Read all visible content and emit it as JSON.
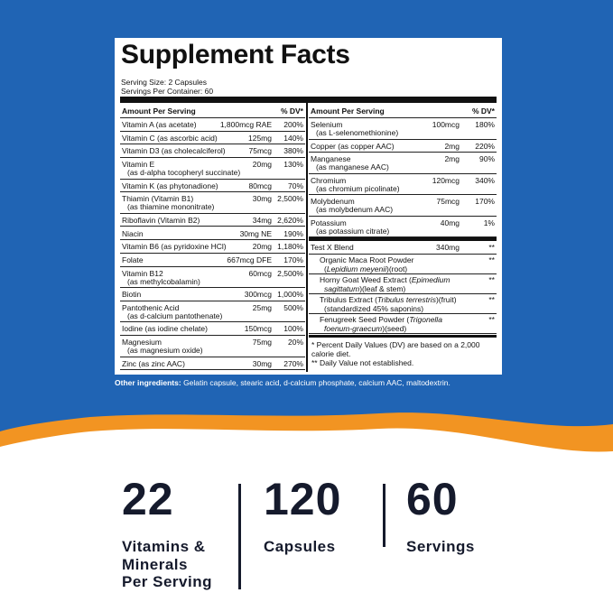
{
  "header": {
    "title": "Supplement Facts",
    "serving_size": "Serving Size: 2 Capsules",
    "servings_per_container": "Servings Per Container: 60"
  },
  "left_table": {
    "amount_header": "Amount Per Serving",
    "dv_header": "% DV*",
    "rows": [
      {
        "name": "Vitamin A (as acetate)",
        "amount": "1,800mcg RAE",
        "dv": "200%"
      },
      {
        "name": "Vitamin C (as ascorbic acid)",
        "amount": "125mg",
        "dv": "140%"
      },
      {
        "name": "Vitamin D3 (as cholecalciferol)",
        "amount": "75mcg",
        "dv": "380%"
      },
      {
        "name": "Vitamin E",
        "sub": "(as d-alpha tocopheryl succinate)",
        "amount": "20mg",
        "dv": "130%"
      },
      {
        "name": "Vitamin K (as phytonadione)",
        "amount": "80mcg",
        "dv": "70%"
      },
      {
        "name": "Thiamin (Vitamin B1)",
        "sub": "(as thiamine mononitrate)",
        "amount": "30mg",
        "dv": "2,500%"
      },
      {
        "name": "Riboflavin (Vitamin B2)",
        "amount": "34mg",
        "dv": "2,620%"
      },
      {
        "name": "Niacin",
        "amount": "30mg NE",
        "dv": "190%"
      },
      {
        "name": "Vitamin B6 (as pyridoxine HCl)",
        "amount": "20mg",
        "dv": "1,180%"
      },
      {
        "name": "Folate",
        "amount": "667mcg DFE",
        "dv": "170%"
      },
      {
        "name": "Vitamin B12",
        "sub": "(as methylcobalamin)",
        "amount": "60mcg",
        "dv": "2,500%"
      },
      {
        "name": "Biotin",
        "amount": "300mcg",
        "dv": "1,000%"
      },
      {
        "name": "Pantothenic Acid",
        "sub": "(as d-calcium pantothenate)",
        "amount": "25mg",
        "dv": "500%"
      },
      {
        "name": "Iodine (as iodine chelate)",
        "amount": "150mcg",
        "dv": "100%"
      },
      {
        "name": "Magnesium",
        "sub": "(as magnesium oxide)",
        "amount": "75mg",
        "dv": "20%"
      },
      {
        "name": "Zinc (as zinc AAC)",
        "amount": "30mg",
        "dv": "270%"
      }
    ]
  },
  "right_table": {
    "amount_header": "Amount Per Serving",
    "dv_header": "% DV*",
    "rows": [
      {
        "name": "Selenium",
        "sub": "(as L-selenomethionine)",
        "amount": "100mcg",
        "dv": "180%"
      },
      {
        "name": "Copper (as copper AAC)",
        "amount": "2mg",
        "dv": "220%"
      },
      {
        "name": "Manganese",
        "sub": "(as manganese AAC)",
        "amount": "2mg",
        "dv": "90%"
      },
      {
        "name": "Chromium",
        "sub": "(as chromium picolinate)",
        "amount": "120mcg",
        "dv": "340%"
      },
      {
        "name": "Molybdenum",
        "sub": "(as molybdenum AAC)",
        "amount": "75mcg",
        "dv": "170%"
      },
      {
        "name": "Potassium",
        "sub": "(as potassium citrate)",
        "amount": "40mg",
        "dv": "1%"
      }
    ],
    "blend": {
      "name": "Test X Blend",
      "amount": "340mg",
      "dv": "**",
      "items": [
        {
          "lines": [
            [
              {
                "text": "Organic Maca Root Powder"
              }
            ],
            [
              {
                "text": "("
              },
              {
                "text": "Lepidium meyenii",
                "italic": true
              },
              {
                "text": ")(root)"
              }
            ]
          ],
          "dv": "**"
        },
        {
          "lines": [
            [
              {
                "text": "Horny Goat Weed Extract ("
              },
              {
                "text": "Epimedium",
                "italic": true
              }
            ],
            [
              {
                "text": "sagittatum",
                "italic": true
              },
              {
                "text": ")(leaf & stem)"
              }
            ]
          ],
          "dv": "**"
        },
        {
          "lines": [
            [
              {
                "text": "Tribulus Extract ("
              },
              {
                "text": "Tribulus terrestris",
                "italic": true
              },
              {
                "text": ")(fruit)"
              }
            ],
            [
              {
                "text": "(standardized 45% saponins)"
              }
            ]
          ],
          "dv": "**"
        },
        {
          "lines": [
            [
              {
                "text": "Fenugreek Seed Powder ("
              },
              {
                "text": "Trigonella",
                "italic": true
              }
            ],
            [
              {
                "text": "foenum-graecum",
                "italic": true
              },
              {
                "text": ")(seed)"
              }
            ]
          ],
          "dv": "**"
        }
      ]
    },
    "footnotes": [
      "* Percent Daily Values (DV) are based on a 2,000 calorie diet.",
      "** Daily Value not established."
    ]
  },
  "other_ingredients": {
    "label": "Other ingredients:",
    "text": "Gelatin capsule, stearic acid, d-calcium phosphate, calcium AAC, maltodextrin."
  },
  "stats": [
    {
      "number": "22",
      "label": [
        "Vitamins &",
        "Minerals",
        "Per Serving"
      ]
    },
    {
      "number": "120",
      "label": [
        "Capsules"
      ]
    },
    {
      "number": "60",
      "label": [
        "Servings"
      ]
    }
  ]
}
